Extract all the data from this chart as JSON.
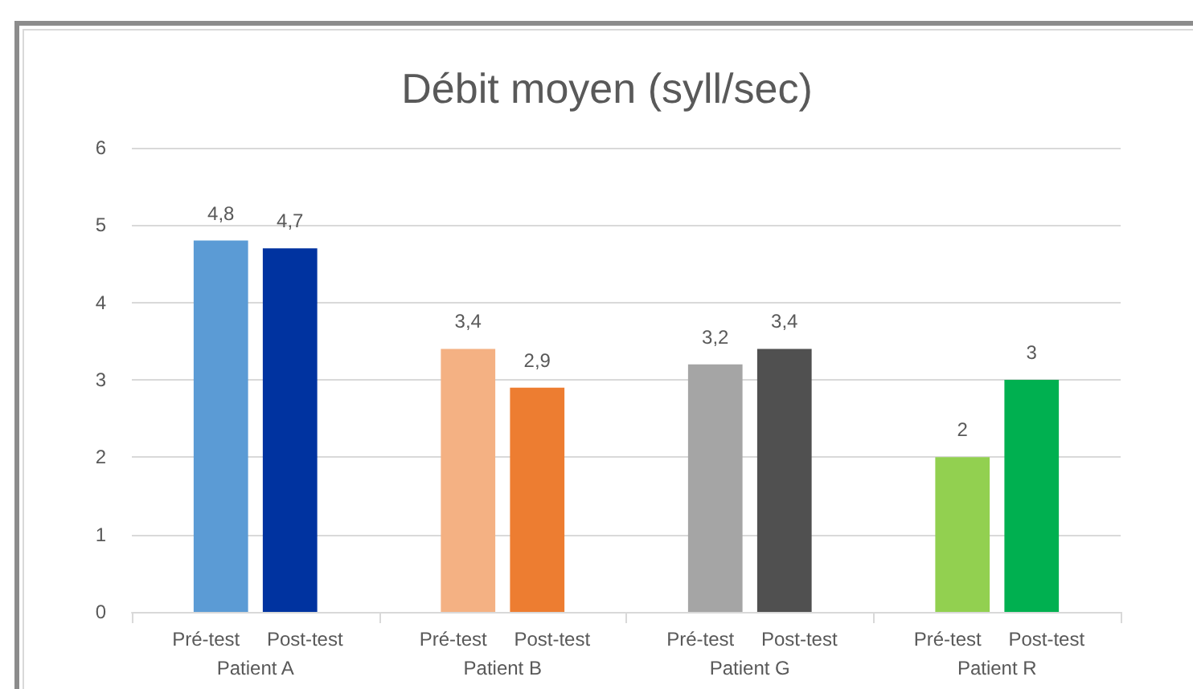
{
  "chart_data": {
    "type": "bar",
    "title": "Débit moyen (syll/sec)",
    "categories": [
      "Patient A",
      "Patient B",
      "Patient G",
      "Patient R"
    ],
    "series": [
      {
        "name": "Pré-test",
        "values": [
          4.8,
          3.4,
          3.2,
          2
        ],
        "colors": [
          "#5b9bd5",
          "#f4b183",
          "#a5a5a5",
          "#92d050"
        ],
        "value_labels": [
          "4,8",
          "3,4",
          "3,2",
          "2"
        ]
      },
      {
        "name": "Post-test",
        "values": [
          4.7,
          2.9,
          3.4,
          3
        ],
        "colors": [
          "#0033a0",
          "#ed7d31",
          "#505050",
          "#00b050"
        ],
        "value_labels": [
          "4,7",
          "2,9",
          "3,4",
          "3"
        ]
      }
    ],
    "ylim": [
      0,
      6
    ],
    "yticks": [
      0,
      1,
      2,
      3,
      4,
      5,
      6
    ],
    "grid": "y"
  }
}
